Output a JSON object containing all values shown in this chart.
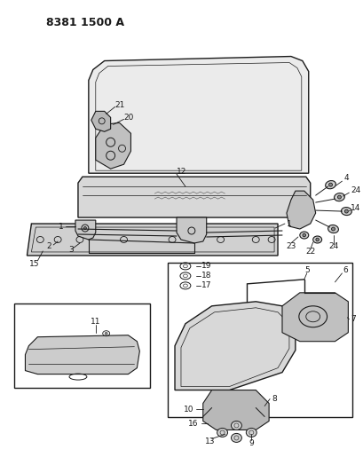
{
  "title": "8381 1500 A",
  "bg_color": "#ffffff",
  "line_color": "#1a1a1a",
  "fig_width": 4.1,
  "fig_height": 5.33,
  "dpi": 100,
  "label_fs": 6.5,
  "title_fs": 9
}
